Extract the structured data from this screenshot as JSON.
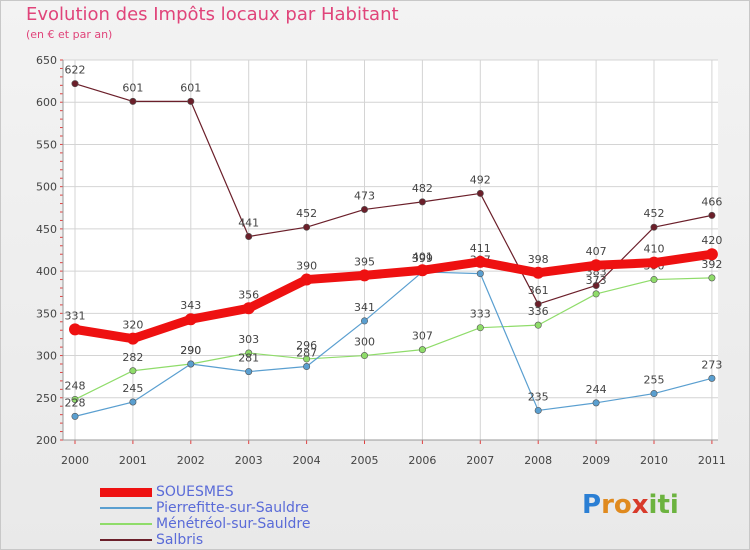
{
  "title": "Evolution des Impôts locaux par Habitant",
  "subtitle": "(en € et par an)",
  "logo": {
    "text": "Proxiti",
    "letters": [
      "P",
      "r",
      "o",
      "x",
      "i",
      "t",
      "i"
    ],
    "colors": [
      "#2b7fd4",
      "#e08a1e",
      "#e08a1e",
      "#d83a2a",
      "#6cb33f",
      "#6cb33f",
      "#6cb33f"
    ]
  },
  "chart_data": {
    "type": "line",
    "title": "Evolution des Impôts locaux par Habitant",
    "subtitle": "(en € et par an)",
    "xlabel": "",
    "ylabel": "",
    "categories": [
      "2000",
      "2001",
      "2002",
      "2003",
      "2004",
      "2005",
      "2006",
      "2007",
      "2008",
      "2009",
      "2010",
      "2011"
    ],
    "ylim": [
      200,
      650
    ],
    "yticks": [
      200,
      250,
      300,
      350,
      400,
      450,
      500,
      550,
      600,
      650
    ],
    "grid": true,
    "legend_position": "bottom-left",
    "series": [
      {
        "name": "Salbris",
        "color": "#6b1f2a",
        "width": 1.2,
        "values": [
          622,
          601,
          601,
          441,
          452,
          473,
          482,
          492,
          361,
          383,
          452,
          466
        ],
        "labels": [
          "622",
          "601",
          "601",
          "441",
          "452",
          "473",
          "482",
          "492",
          "361",
          "383",
          "452",
          "466"
        ]
      },
      {
        "name": "Ménétréol-sur-Sauldre",
        "color": "#8fdc6a",
        "width": 1.2,
        "values": [
          248,
          282,
          290,
          303,
          296,
          300,
          307,
          333,
          336,
          373,
          390,
          392
        ],
        "labels": [
          "248",
          "282",
          "290",
          "303",
          "296",
          "300",
          "307",
          "333",
          "336",
          "373",
          "390",
          "392"
        ]
      },
      {
        "name": "Pierrefitte-sur-Sauldre",
        "color": "#5a9fd0",
        "width": 1.2,
        "values": [
          228,
          245,
          290,
          281,
          287,
          341,
          399,
          397,
          235,
          244,
          255,
          273
        ],
        "labels": [
          "228",
          "245",
          "290",
          "281",
          "287",
          "341",
          "399",
          "397",
          "235",
          "244",
          "255",
          "273"
        ]
      },
      {
        "name": "SOUESMES",
        "color": "#ee1111",
        "width": 9,
        "values": [
          331,
          320,
          343,
          356,
          390,
          395,
          401,
          411,
          398,
          407,
          410,
          420
        ],
        "labels": [
          "331",
          "320",
          "343",
          "356",
          "390",
          "395",
          "401",
          "411",
          "398",
          "407",
          "410",
          "420"
        ]
      }
    ],
    "legend": [
      "SOUESMES",
      "Pierrefitte-sur-Sauldre",
      "Ménétréol-sur-Sauldre",
      "Salbris"
    ]
  }
}
